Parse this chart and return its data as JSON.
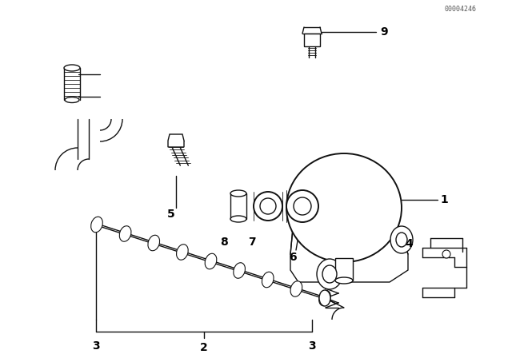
{
  "bg_color": "#ffffff",
  "line_color": "#111111",
  "figsize": [
    6.4,
    4.48
  ],
  "dpi": 100,
  "watermark": "00004246"
}
